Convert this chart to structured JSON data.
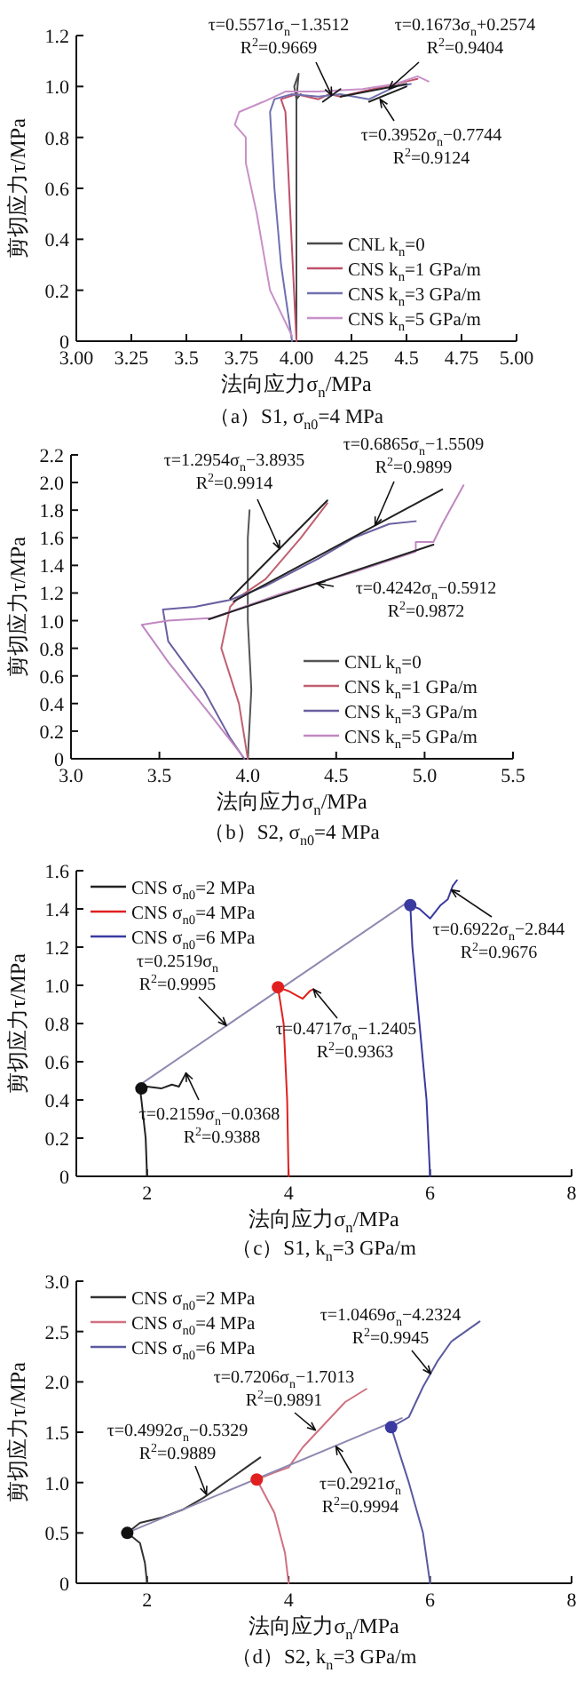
{
  "chart_data": [
    {
      "type": "line",
      "title": "（a）S1, σ$_{n0}$=4 MPa",
      "xlabel": "法向应力σ$_{n}$/MPa",
      "ylabel": "剪切应力τ/MPa",
      "xlim": [
        3,
        5
      ],
      "ylim": [
        0,
        1.2
      ],
      "xticks": [
        {
          "value": 3,
          "label": "3.00"
        },
        3.25,
        3.5,
        3.75,
        {
          "value": 4,
          "label": "4.00"
        },
        4.25,
        4.5,
        4.75,
        {
          "value": 5,
          "label": "5.00"
        }
      ],
      "yticks": [
        0,
        0.2,
        0.4,
        0.6,
        0.8,
        {
          "value": 1,
          "label": "1.0"
        },
        1.2
      ],
      "legend": "bottom right",
      "series": [
        {
          "type": "line",
          "name": "CNL k$_{n}$=0",
          "color": "#4a4a4a",
          "x": [
            4.0,
            4.0,
            3.99,
            4.01,
            4.0,
            4.02
          ],
          "values": [
            0,
            0.95,
            1.0,
            1.05,
            0.95,
            0.97
          ]
        },
        {
          "type": "line",
          "name": "CNS k$_{n}$=1 GPa/m",
          "color": "#c0506a",
          "x": [
            4.0,
            3.95,
            3.93,
            4.0,
            4.1,
            4.15,
            4.2,
            4.3,
            4.4,
            4.5,
            4.55
          ],
          "values": [
            0,
            0.9,
            0.95,
            0.97,
            0.95,
            0.97,
            0.96,
            0.98,
            1.0,
            1.02,
            1.03
          ]
        },
        {
          "type": "line",
          "name": "CNS k$_{n}$=3 GPa/m",
          "color": "#7070b0",
          "x": [
            3.98,
            3.93,
            3.9,
            3.88,
            3.9,
            3.98,
            4.1,
            4.2,
            4.33,
            4.45,
            4.52
          ],
          "values": [
            0,
            0.3,
            0.6,
            0.9,
            0.95,
            0.97,
            0.96,
            0.97,
            0.95,
            1.0,
            1.01
          ]
        },
        {
          "type": "line",
          "name": "CNS k$_{n}$=5 GPa/m",
          "color": "#c890c8",
          "x": [
            3.98,
            3.88,
            3.82,
            3.77,
            3.77,
            3.72,
            3.74,
            3.85,
            3.95,
            4.1,
            4.3,
            4.45,
            4.55,
            4.6
          ],
          "values": [
            0.02,
            0.2,
            0.5,
            0.7,
            0.8,
            0.85,
            0.9,
            0.94,
            0.98,
            0.98,
            0.99,
            1.01,
            1.04,
            1.02
          ]
        },
        {
          "type": "line",
          "color": "#222222",
          "x": [
            4.12,
            4.2
          ],
          "values": [
            0.94,
            0.99
          ]
        },
        {
          "type": "line",
          "color": "#222222",
          "x": [
            4.2,
            4.5
          ],
          "values": [
            0.96,
            1.01
          ]
        },
        {
          "type": "line",
          "color": "#222222",
          "x": [
            4.33,
            4.5
          ],
          "values": [
            0.94,
            1.0
          ]
        }
      ],
      "annotations": [
        "τ=0.5571σ$_{n}$−1.3512",
        {
          "text": "R$^{2}$=0.9669",
          "x": 4.16,
          "y": 0.965
        },
        "τ=0.1673σ$_{n}$+0.2574",
        {
          "text": "R$^{2}$=0.9404",
          "x": 4.42,
          "y": 0.99
        },
        {
          "text": "τ=0.3952σ$_{n}$−0.7744",
          "x": 4.38,
          "y": 0.95
        },
        "R$^{2}$=0.9124"
      ]
    },
    {
      "type": "line",
      "title": "（b）S2, σ$_{n0}$=4 MPa",
      "xlabel": "法向应力σ$_{n}$/MPa",
      "ylabel": "剪切应力τ/MPa",
      "xlim": [
        3,
        5.5
      ],
      "ylim": [
        0,
        2.2
      ],
      "xticks": [
        {
          "value": 3,
          "label": "3.0"
        },
        3.5,
        {
          "value": 4,
          "label": "4.0"
        },
        4.5,
        {
          "value": 5,
          "label": "5.0"
        },
        5.5
      ],
      "yticks": [
        0,
        0.2,
        0.4,
        0.6,
        0.8,
        {
          "value": 1,
          "label": "1.0"
        },
        1.2,
        1.4,
        1.6,
        1.8,
        {
          "value": 2,
          "label": "2.0"
        },
        2.2
      ],
      "legend": "bottom right",
      "series": [
        {
          "type": "line",
          "name": "CNL k$_{n}$=0",
          "color": "#555555",
          "x": [
            4.0,
            4.02,
            4.0,
            4.0,
            4.0,
            4.01
          ],
          "values": [
            0,
            0.5,
            1.0,
            1.4,
            1.6,
            1.8
          ]
        },
        {
          "type": "line",
          "name": "CNS k$_{n}$=1 GPa/m",
          "color": "#c06070",
          "x": [
            4.0,
            3.95,
            3.85,
            3.9,
            3.95,
            4.1,
            4.2,
            4.3,
            4.45
          ],
          "values": [
            0,
            0.4,
            0.8,
            1.1,
            1.17,
            1.3,
            1.45,
            1.6,
            1.85
          ]
        },
        {
          "type": "line",
          "name": "CNS k$_{n}$=3 GPa/m",
          "color": "#6a60a0",
          "x": [
            3.98,
            3.9,
            3.75,
            3.55,
            3.52,
            3.7,
            3.9,
            4.1,
            4.4,
            4.6,
            4.8,
            4.95
          ],
          "values": [
            0,
            0.15,
            0.5,
            0.85,
            1.08,
            1.1,
            1.15,
            1.25,
            1.45,
            1.6,
            1.7,
            1.72
          ]
        },
        {
          "type": "line",
          "name": "CNS k$_{n}$=5 GPa/m",
          "color": "#c088c0",
          "x": [
            3.97,
            3.8,
            3.55,
            3.4,
            3.55,
            3.8,
            4.2,
            4.6,
            4.95,
            4.95,
            5.05,
            5.1,
            5.22
          ],
          "values": [
            0.02,
            0.3,
            0.7,
            0.97,
            1.0,
            1.02,
            1.2,
            1.35,
            1.5,
            1.57,
            1.57,
            1.7,
            1.98
          ]
        },
        {
          "type": "line",
          "color": "#222222",
          "x": [
            3.9,
            4.45
          ],
          "values": [
            1.16,
            1.87
          ]
        },
        {
          "type": "line",
          "color": "#222222",
          "x": [
            3.92,
            5.1
          ],
          "values": [
            1.14,
            1.95
          ]
        },
        {
          "type": "line",
          "color": "#222222",
          "x": [
            3.78,
            5.05
          ],
          "values": [
            1.01,
            1.55
          ]
        }
      ],
      "annotations": [
        "τ=1.2954σ$_{n}$−3.8935",
        {
          "text": "R$^{2}$=0.9914",
          "x": 4.18,
          "y": 1.52
        },
        "τ=0.6865σ$_{n}$−1.5509",
        {
          "text": "R$^{2}$=0.9899",
          "x": 4.72,
          "y": 1.69
        },
        {
          "text": "τ=0.4242σ$_{n}$−0.5912",
          "x": 4.39,
          "y": 1.27
        },
        "R$^{2}$=0.9872"
      ]
    },
    {
      "type": "line",
      "title": "（c）S1, k$_{n}$=3 GPa/m",
      "xlabel": "法向应力σ$_{n}$/MPa",
      "ylabel": "剪切应力τ/MPa",
      "xlim": [
        1,
        8
      ],
      "ylim": [
        0,
        1.6
      ],
      "xticks": [
        2,
        4,
        6,
        8
      ],
      "yticks": [
        0,
        0.2,
        0.4,
        0.6,
        0.8,
        {
          "value": 1,
          "label": "1.0"
        },
        1.2,
        1.4,
        1.6
      ],
      "legend": "top left",
      "series": [
        {
          "type": "line",
          "name": "CNS σ$_{n0}$=2 MPa",
          "color": "#222222",
          "x": [
            2.0,
            1.98,
            1.92,
            1.9,
            2.0,
            2.2,
            2.35,
            2.45,
            2.55
          ],
          "values": [
            0,
            0.2,
            0.4,
            0.46,
            0.47,
            0.46,
            0.48,
            0.47,
            0.54
          ]
        },
        {
          "type": "line",
          "name": "CNS σ$_{n0}$=4 MPa",
          "color": "#e02020",
          "x": [
            4.0,
            3.98,
            3.93,
            3.85,
            4.0,
            4.1,
            4.2,
            4.3,
            4.35
          ],
          "values": [
            0,
            0.4,
            0.8,
            0.99,
            0.97,
            0.95,
            0.93,
            0.97,
            0.98
          ]
        },
        {
          "type": "line",
          "name": "CNS σ$_{n0}$=6 MPa",
          "color": "#3a3aa0",
          "x": [
            6.0,
            5.95,
            5.85,
            5.75,
            5.72,
            5.85,
            6.0,
            6.15,
            6.25,
            6.32,
            6.38
          ],
          "values": [
            0,
            0.4,
            0.8,
            1.2,
            1.42,
            1.4,
            1.35,
            1.42,
            1.45,
            1.52,
            1.55
          ]
        },
        {
          "type": "line",
          "color": "#9088b0",
          "x": [
            1.9,
            5.7
          ],
          "values": [
            0.48,
            1.44
          ]
        },
        {
          "type": "scatter",
          "marker": "circle",
          "color": "#111111",
          "x": [
            1.92
          ],
          "values": [
            0.46
          ]
        },
        {
          "type": "scatter",
          "marker": "circle",
          "color": "#e02020",
          "x": [
            3.85
          ],
          "values": [
            0.99
          ]
        },
        {
          "type": "scatter",
          "marker": "circle",
          "color": "#3a3aa0",
          "x": [
            5.72
          ],
          "values": [
            1.42
          ]
        }
      ],
      "annotations": [
        "τ=0.2519σ$_{n}$",
        {
          "text": "R$^{2}$=0.9995",
          "x": 3.12,
          "y": 0.79
        },
        {
          "text": "τ=0.4717σ$_{n}$−1.2405",
          "x": 4.35,
          "y": 0.98
        },
        "R$^{2}$=0.9363",
        {
          "text": "τ=0.6922σ$_{n}$−2.844",
          "x": 6.3,
          "y": 1.5
        },
        "R$^{2}$=0.9676",
        {
          "text": "τ=0.2159σ$_{n}$−0.0368",
          "x": 2.55,
          "y": 0.54
        },
        "R$^{2}$=0.9388"
      ]
    },
    {
      "type": "line",
      "title": "（d）S2, k$_{n}$=3 GPa/m",
      "xlabel": "法向应力σ$_{n}$/MPa",
      "ylabel": "剪切应力τ/MPa",
      "xlim": [
        1,
        8
      ],
      "ylim": [
        0,
        3
      ],
      "xticks": [
        2,
        4,
        6,
        8
      ],
      "yticks": [
        0,
        0.5,
        {
          "value": 1,
          "label": "1.0"
        },
        1.5,
        {
          "value": 2,
          "label": "2.0"
        },
        2.5,
        {
          "value": 3,
          "label": "3.0"
        }
      ],
      "legend": "top left",
      "series": [
        {
          "type": "line",
          "name": "CNS σ$_{n0}$=2 MPa",
          "color": "#333333",
          "x": [
            2.0,
            1.97,
            1.9,
            1.72,
            1.9,
            2.2,
            2.5,
            2.8,
            3.0,
            3.2,
            3.4,
            3.6
          ],
          "values": [
            0,
            0.2,
            0.4,
            0.5,
            0.6,
            0.65,
            0.73,
            0.85,
            0.95,
            1.05,
            1.15,
            1.25
          ]
        },
        {
          "type": "line",
          "name": "CNS σ$_{n0}$=4 MPa",
          "color": "#d07080",
          "x": [
            4.0,
            3.95,
            3.8,
            3.55,
            3.8,
            4.0,
            4.2,
            4.4,
            4.6,
            4.8,
            5.1
          ],
          "values": [
            0,
            0.3,
            0.7,
            1.03,
            1.1,
            1.15,
            1.35,
            1.5,
            1.65,
            1.8,
            1.93
          ]
        },
        {
          "type": "line",
          "name": "CNS σ$_{n0}$=6 MPa",
          "color": "#5a5aa0",
          "x": [
            6.0,
            5.9,
            5.7,
            5.45,
            5.7,
            5.9,
            6.1,
            6.3,
            6.5,
            6.7
          ],
          "values": [
            0,
            0.5,
            1.0,
            1.55,
            1.65,
            1.95,
            2.2,
            2.4,
            2.5,
            2.6
          ]
        },
        {
          "type": "line",
          "color": "#9088b0",
          "x": [
            1.75,
            5.6
          ],
          "values": [
            0.51,
            1.64
          ]
        },
        {
          "type": "scatter",
          "marker": "circle",
          "color": "#111111",
          "x": [
            1.72
          ],
          "values": [
            0.5
          ]
        },
        {
          "type": "scatter",
          "marker": "circle",
          "color": "#e02020",
          "x": [
            3.55
          ],
          "values": [
            1.03
          ]
        },
        {
          "type": "scatter",
          "marker": "circle",
          "color": "#3a3aa0",
          "x": [
            5.45
          ],
          "values": [
            1.55
          ]
        }
      ],
      "annotations": [
        "τ=0.4992σ$_{n}$−0.5329",
        {
          "text": "R$^{2}$=0.9889",
          "x": 2.84,
          "y": 0.88
        },
        "τ=0.7206σ$_{n}$−1.7013",
        {
          "text": "R$^{2}$=0.9891",
          "x": 4.38,
          "y": 1.52
        },
        "τ=1.0469σ$_{n}$−4.2324",
        {
          "text": "R$^{2}$=0.9945",
          "x": 6.01,
          "y": 2.08
        },
        {
          "text": "τ=0.2921σ$_{n}$",
          "x": 4.67,
          "y": 1.36
        },
        "R$^{2}$=0.9994"
      ]
    }
  ]
}
